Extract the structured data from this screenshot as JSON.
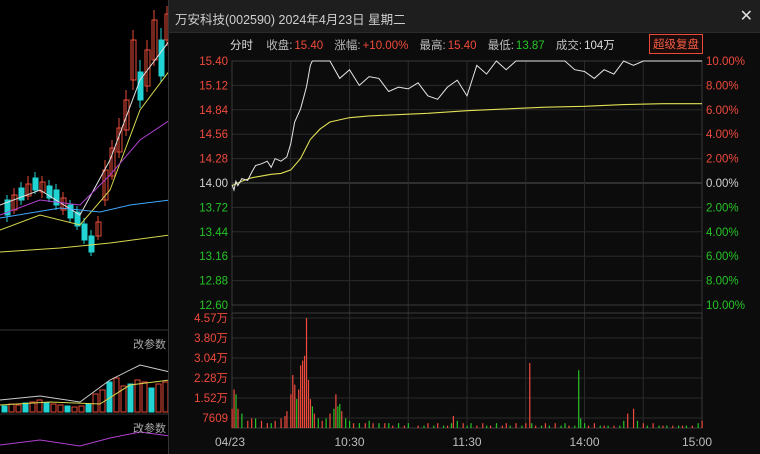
{
  "bg": {
    "labels": [
      "改参数",
      "改参数"
    ],
    "colors": {
      "up": "#e84b3a",
      "down": "#22d3d3",
      "ma1": "#e0e0e0",
      "ma2": "#d8d850",
      "ma3": "#b040d0",
      "ma4": "#40a8ff"
    }
  },
  "window": {
    "title": "万安科技(002590) 2024年4月23日 星期二",
    "close_icon": "close-icon"
  },
  "info": {
    "mode": "分时",
    "close_label": "收盘:",
    "close_value": "15.40",
    "change_label": "涨幅:",
    "change_value": "+10.00%",
    "high_label": "最高:",
    "high_value": "15.40",
    "low_label": "最低:",
    "low_value": "13.87",
    "vol_label": "成交:",
    "vol_value": "104万",
    "badge": "超级复盘"
  },
  "colors": {
    "up": "#f04a3c",
    "down": "#26c426",
    "flat": "#d0d0d0",
    "price_line": "#e6e6e6",
    "avg_line": "#e1e156",
    "grid": "#2a2a2a"
  },
  "chart_data": {
    "type": "line",
    "title": "",
    "x_ticks": [
      "04/23",
      "10:30",
      "11:30",
      "14:00",
      "15:00"
    ],
    "price_axis": [
      "15.40",
      "15.12",
      "14.84",
      "14.56",
      "14.28",
      "14.00",
      "13.72",
      "13.44",
      "13.16",
      "12.88",
      "12.60"
    ],
    "pct_axis": [
      "10.00%",
      "8.00%",
      "6.00%",
      "4.00%",
      "2.00%",
      "0.00%",
      "2.00%",
      "4.00%",
      "6.00%",
      "8.00%",
      "10.00%"
    ],
    "vol_axis": [
      "4.57万",
      "3.80万",
      "3.04万",
      "2.28万",
      "1.52万",
      "7609"
    ],
    "ylim": [
      12.6,
      15.4
    ],
    "prev_close": 14.0,
    "series": [
      {
        "name": "price",
        "x": [
          0,
          1,
          2,
          3,
          5,
          8,
          10,
          12,
          15,
          18,
          20,
          22,
          25,
          28,
          30,
          32,
          35,
          38,
          40,
          41,
          42,
          43,
          45,
          50,
          55,
          60,
          65,
          70,
          75,
          80,
          85,
          90,
          95,
          100,
          105,
          110,
          115,
          120,
          125,
          130,
          135,
          140,
          145,
          150,
          155,
          160,
          165,
          170,
          175,
          180,
          185,
          190,
          195,
          200,
          205,
          210,
          215,
          220,
          225,
          230,
          235,
          240
        ],
        "y": [
          13.98,
          13.92,
          14.02,
          13.97,
          14.05,
          14.03,
          14.12,
          14.2,
          14.22,
          14.25,
          14.18,
          14.28,
          14.25,
          14.3,
          14.45,
          14.7,
          14.85,
          15.1,
          15.35,
          15.4,
          15.4,
          15.4,
          15.4,
          15.4,
          15.2,
          15.3,
          15.12,
          15.22,
          15.2,
          15.05,
          15.1,
          15.08,
          15.15,
          15.0,
          14.96,
          15.1,
          15.18,
          15.0,
          15.35,
          15.25,
          15.4,
          15.3,
          15.4,
          15.4,
          15.4,
          15.4,
          15.4,
          15.4,
          15.3,
          15.28,
          15.2,
          15.3,
          15.25,
          15.4,
          15.35,
          15.4,
          15.4,
          15.4,
          15.4,
          15.4,
          15.4,
          15.4
        ]
      },
      {
        "name": "avg",
        "x": [
          0,
          5,
          10,
          15,
          20,
          25,
          30,
          35,
          40,
          45,
          50,
          60,
          70,
          80,
          90,
          100,
          120,
          140,
          160,
          180,
          200,
          220,
          240
        ],
        "y": [
          13.97,
          14.02,
          14.06,
          14.08,
          14.1,
          14.11,
          14.15,
          14.28,
          14.5,
          14.62,
          14.7,
          14.75,
          14.77,
          14.78,
          14.79,
          14.8,
          14.83,
          14.85,
          14.87,
          14.88,
          14.9,
          14.91,
          14.91
        ]
      }
    ],
    "volume_max": 45700,
    "volume": [
      [
        0,
        8,
        "u"
      ],
      [
        1,
        16,
        "u"
      ],
      [
        2,
        14,
        "d"
      ],
      [
        3,
        8,
        "u"
      ],
      [
        5,
        6,
        "d"
      ],
      [
        8,
        3,
        "u"
      ],
      [
        10,
        4,
        "u"
      ],
      [
        12,
        4,
        "d"
      ],
      [
        15,
        3,
        "u"
      ],
      [
        18,
        2,
        "u"
      ],
      [
        20,
        2,
        "d"
      ],
      [
        22,
        3,
        "u"
      ],
      [
        25,
        4,
        "u"
      ],
      [
        27,
        5,
        "u"
      ],
      [
        28,
        7,
        "u"
      ],
      [
        30,
        14,
        "u"
      ],
      [
        31,
        22,
        "u"
      ],
      [
        32,
        18,
        "u"
      ],
      [
        33,
        12,
        "d"
      ],
      [
        34,
        16,
        "u"
      ],
      [
        35,
        26,
        "u"
      ],
      [
        36,
        28,
        "u"
      ],
      [
        37,
        30,
        "u"
      ],
      [
        38,
        45.7,
        "u"
      ],
      [
        39,
        20,
        "u"
      ],
      [
        40,
        12,
        "u"
      ],
      [
        41,
        9,
        "d"
      ],
      [
        42,
        6,
        "u"
      ],
      [
        44,
        4,
        "d"
      ],
      [
        46,
        3,
        "u"
      ],
      [
        48,
        4,
        "d"
      ],
      [
        50,
        6,
        "u"
      ],
      [
        52,
        8,
        "d"
      ],
      [
        53,
        14,
        "u"
      ],
      [
        54,
        9,
        "d"
      ],
      [
        55,
        10,
        "d"
      ],
      [
        56,
        7,
        "u"
      ],
      [
        58,
        4,
        "d"
      ],
      [
        60,
        3,
        "d"
      ],
      [
        62,
        2,
        "u"
      ],
      [
        65,
        2,
        "d"
      ],
      [
        68,
        2,
        "u"
      ],
      [
        70,
        3,
        "d"
      ],
      [
        72,
        2,
        "u"
      ],
      [
        75,
        2,
        "d"
      ],
      [
        78,
        2,
        "u"
      ],
      [
        80,
        2,
        "d"
      ],
      [
        82,
        1,
        "u"
      ],
      [
        85,
        2,
        "d"
      ],
      [
        88,
        1,
        "u"
      ],
      [
        90,
        2,
        "d"
      ],
      [
        95,
        1,
        "u"
      ],
      [
        98,
        1,
        "d"
      ],
      [
        100,
        2,
        "u"
      ],
      [
        103,
        1,
        "d"
      ],
      [
        105,
        2,
        "u"
      ],
      [
        108,
        1,
        "d"
      ],
      [
        110,
        1,
        "u"
      ],
      [
        112,
        2,
        "d"
      ],
      [
        113,
        5,
        "u"
      ],
      [
        115,
        3,
        "d"
      ],
      [
        118,
        2,
        "u"
      ],
      [
        120,
        1,
        "d"
      ],
      [
        122,
        2,
        "d"
      ],
      [
        125,
        1,
        "u"
      ],
      [
        128,
        2,
        "u"
      ],
      [
        130,
        1,
        "d"
      ],
      [
        132,
        1,
        "u"
      ],
      [
        135,
        2,
        "d"
      ],
      [
        138,
        1,
        "u"
      ],
      [
        140,
        2,
        "u"
      ],
      [
        142,
        1,
        "d"
      ],
      [
        145,
        2,
        "u"
      ],
      [
        148,
        1,
        "d"
      ],
      [
        150,
        2,
        "u"
      ],
      [
        152,
        27,
        "u"
      ],
      [
        153,
        2,
        "d"
      ],
      [
        155,
        1,
        "u"
      ],
      [
        158,
        1,
        "d"
      ],
      [
        160,
        2,
        "u"
      ],
      [
        162,
        1,
        "d"
      ],
      [
        165,
        2,
        "u"
      ],
      [
        168,
        1,
        "d"
      ],
      [
        170,
        2,
        "d"
      ],
      [
        172,
        1,
        "u"
      ],
      [
        175,
        1,
        "d"
      ],
      [
        177,
        24,
        "d"
      ],
      [
        178,
        4,
        "d"
      ],
      [
        180,
        2,
        "d"
      ],
      [
        182,
        1,
        "u"
      ],
      [
        185,
        2,
        "u"
      ],
      [
        188,
        1,
        "d"
      ],
      [
        190,
        1,
        "u"
      ],
      [
        192,
        1,
        "d"
      ],
      [
        195,
        1,
        "u"
      ],
      [
        198,
        1,
        "d"
      ],
      [
        200,
        3,
        "d"
      ],
      [
        202,
        6,
        "u"
      ],
      [
        205,
        8,
        "u"
      ],
      [
        207,
        3,
        "d"
      ],
      [
        210,
        2,
        "u"
      ],
      [
        212,
        1,
        "d"
      ],
      [
        215,
        2,
        "u"
      ],
      [
        218,
        1,
        "d"
      ],
      [
        220,
        1,
        "u"
      ],
      [
        222,
        1,
        "d"
      ],
      [
        225,
        1,
        "u"
      ],
      [
        228,
        1,
        "d"
      ],
      [
        230,
        1,
        "u"
      ],
      [
        232,
        1,
        "d"
      ],
      [
        235,
        1,
        "u"
      ],
      [
        238,
        2,
        "d"
      ],
      [
        240,
        3,
        "u"
      ]
    ]
  }
}
